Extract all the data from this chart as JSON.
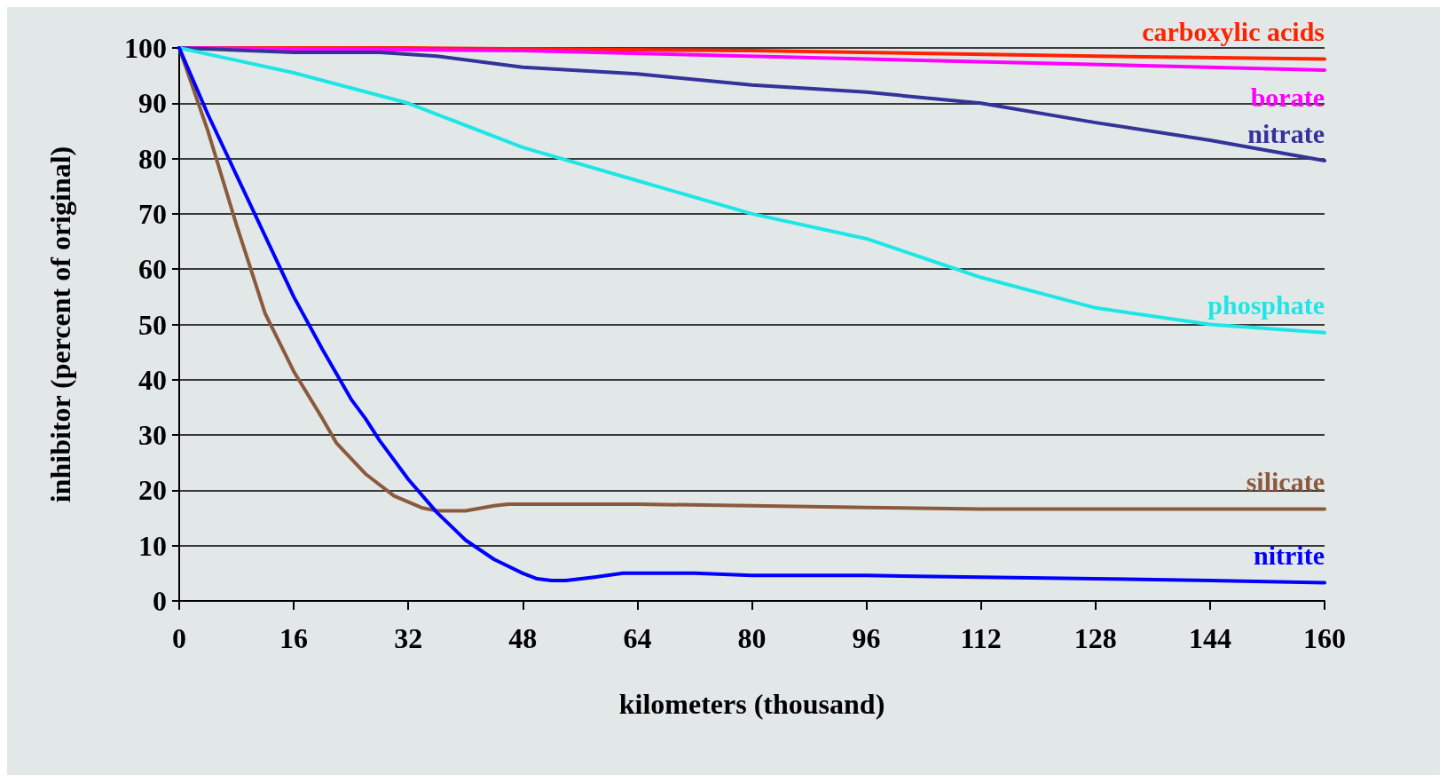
{
  "chart_data": {
    "type": "line",
    "xlabel": "kilometers (thousand)",
    "ylabel": "inhibitor (percent of original)",
    "xlim": [
      0,
      160
    ],
    "xticks": [
      0,
      16,
      32,
      48,
      64,
      80,
      96,
      112,
      128,
      144,
      160
    ],
    "ylim": [
      0,
      100
    ],
    "yticks": [
      0,
      10,
      20,
      30,
      40,
      50,
      60,
      70,
      80,
      90,
      100
    ],
    "grid": "y",
    "legend": false,
    "marker": "none",
    "line_style": "solid",
    "series": [
      {
        "name": "carboxylic acids",
        "color": "#ff2200",
        "x": [
          0,
          32,
          80,
          128,
          160
        ],
        "values": [
          100,
          100,
          99.5,
          98.5,
          98
        ]
      },
      {
        "name": "borate",
        "color": "#ff00ff",
        "x": [
          0,
          48,
          96,
          160
        ],
        "values": [
          100,
          99.5,
          98,
          96
        ]
      },
      {
        "name": "nitrate",
        "color": "#333399",
        "x": [
          0,
          16,
          28,
          36,
          48,
          64,
          80,
          96,
          112,
          128,
          144,
          160
        ],
        "values": [
          100,
          99.2,
          99.2,
          98.5,
          96.5,
          95.3,
          93.3,
          92,
          90,
          86.5,
          83.3,
          79.6
        ]
      },
      {
        "name": "phosphate",
        "color": "#1ee6e6",
        "x": [
          0,
          16,
          32,
          48,
          64,
          80,
          96,
          104,
          112,
          128,
          144,
          160
        ],
        "values": [
          100,
          95.5,
          90,
          82,
          76,
          70,
          65.5,
          62,
          58.5,
          53,
          50,
          48.5
        ]
      },
      {
        "name": "silicate",
        "color": "#8b5a3c",
        "x": [
          0,
          4,
          8,
          10,
          12,
          16,
          20,
          22,
          26,
          30,
          34,
          36,
          40,
          44,
          46,
          64,
          80,
          96,
          112,
          160
        ],
        "values": [
          100,
          85,
          68,
          60,
          52,
          41.5,
          33,
          28.5,
          23,
          19,
          16.8,
          16.3,
          16.3,
          17.2,
          17.5,
          17.5,
          17.2,
          16.9,
          16.6,
          16.6
        ]
      },
      {
        "name": "nitrite",
        "color": "#0000ff",
        "x": [
          0,
          4,
          8,
          12,
          16,
          20,
          24,
          26,
          28,
          32,
          36,
          38,
          40,
          44,
          48,
          50,
          52,
          54,
          58,
          62,
          72,
          80,
          96,
          112,
          128,
          144,
          160
        ],
        "values": [
          100,
          88,
          77,
          66,
          55,
          45.5,
          36.5,
          33,
          29,
          22,
          16,
          13.5,
          11,
          7.5,
          5,
          4,
          3.7,
          3.7,
          4.3,
          5,
          5,
          4.6,
          4.6,
          4.3,
          4,
          3.7,
          3.3
        ]
      }
    ]
  }
}
